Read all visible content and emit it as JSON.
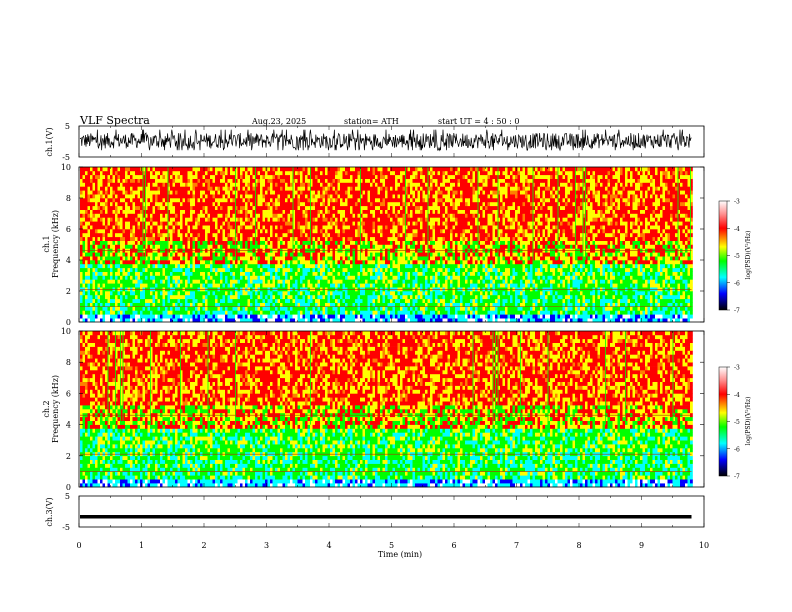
{
  "header": {
    "title": "VLF  Spectra",
    "date": "Aug.23, 2025",
    "station": "station= ATH",
    "start": "start  UT  =   4  : 50 : 0"
  },
  "chart_data": [
    {
      "type": "line",
      "ylabel": "ch.1(V)",
      "ylim": [
        -5,
        5
      ],
      "yticks": [
        "5",
        "-5"
      ],
      "xlim": [
        0,
        10
      ],
      "description_of_series": "dense noisy waveform spanning roughly -3 to 4 V over 0–9.8 min",
      "series": [
        {
          "x_range": [
            0,
            9.8
          ],
          "amplitude_range": [
            -3,
            4
          ]
        }
      ]
    },
    {
      "type": "heatmap",
      "ylabel_top": "ch.1",
      "ylabel": "Frequency  (kHz)",
      "ylim": [
        0,
        10
      ],
      "yticks": [
        "0",
        "2",
        "4",
        "6",
        "8",
        "10"
      ],
      "xlim": [
        0,
        10
      ],
      "colorbar": {
        "label": "log(PSD)(V²/Hz)",
        "range": [
          -7,
          -3
        ],
        "ticks": [
          "-3",
          "-4",
          "-5",
          "-6",
          "-7"
        ]
      }
    },
    {
      "type": "heatmap",
      "ylabel_top": "ch.2",
      "ylabel": "Frequency  (kHz)",
      "ylim": [
        0,
        10
      ],
      "yticks": [
        "0",
        "2",
        "4",
        "6",
        "8",
        "10"
      ],
      "xlim": [
        0,
        10
      ],
      "colorbar": {
        "label": "log(PSD)(V²/Hz)",
        "range": [
          -7,
          -3
        ],
        "ticks": [
          "-3",
          "-4",
          "-5",
          "-6",
          "-7"
        ]
      }
    },
    {
      "type": "line",
      "ylabel": "ch.3(V)",
      "ylim": [
        -5,
        5
      ],
      "yticks": [
        "5",
        "-5"
      ],
      "xlim": [
        0,
        10
      ],
      "series": [
        {
          "x_range": [
            0,
            9.8
          ],
          "level": -1.7
        }
      ]
    }
  ],
  "xaxis": {
    "label": "Time  (min)",
    "ticks": [
      "0",
      "1",
      "2",
      "3",
      "4",
      "5",
      "6",
      "7",
      "8",
      "9",
      "10"
    ]
  },
  "colors": {
    "red": "#ff0000",
    "yellow": "#ffff00",
    "green": "#00ff00",
    "cyan": "#00ffff",
    "blue": "#0000ff",
    "black": "#000000"
  }
}
